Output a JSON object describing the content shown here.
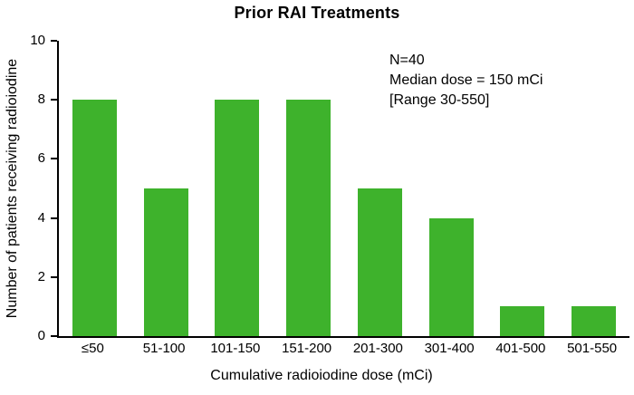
{
  "chart_data": {
    "type": "bar",
    "title": "Prior RAI Treatments",
    "categories": [
      "≤50",
      "51-100",
      "101-150",
      "151-200",
      "201-300",
      "301-400",
      "401-500",
      "501-550"
    ],
    "values": [
      8,
      5,
      8,
      8,
      5,
      4,
      1,
      1
    ],
    "xlabel": "Cumulative radioiodine dose (mCi)",
    "ylabel": "Number of patients receiving radioiodine",
    "ylim": [
      0,
      10
    ],
    "yticks": [
      0,
      2,
      4,
      6,
      8,
      10
    ],
    "bar_color": "#3eb22c",
    "axis_color": "#000000",
    "grid": false,
    "legend_position": "none",
    "annotation_lines": [
      "N=40",
      "Median dose = 150 mCi",
      "[Range 30-550]"
    ]
  }
}
